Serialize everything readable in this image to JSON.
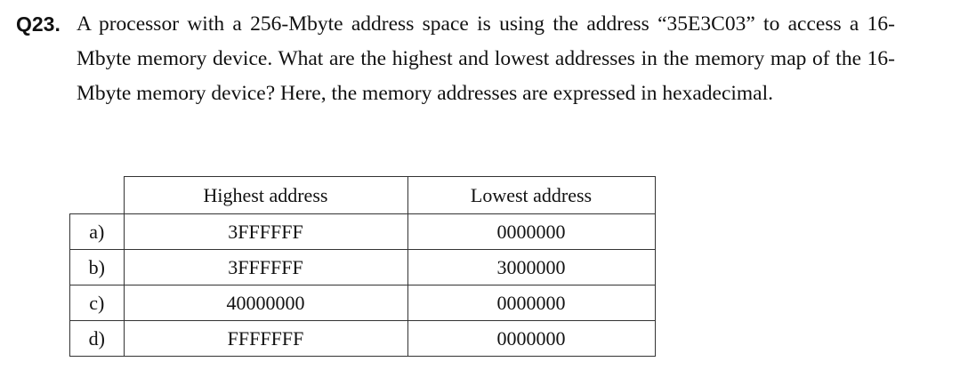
{
  "question": {
    "number": "Q23.",
    "text": "A processor with a 256-Mbyte address space is using the address “35E3C03” to access a 16-Mbyte memory device. What are the highest and lowest addresses in the memory map of the 16-Mbyte memory device?   Here, the memory addresses are expressed in hexadecimal."
  },
  "table": {
    "headers": [
      "Highest address",
      "Lowest address"
    ],
    "rows": [
      {
        "label": "a)",
        "highest": "3FFFFFF",
        "lowest": "0000000"
      },
      {
        "label": "b)",
        "highest": "3FFFFFF",
        "lowest": "3000000"
      },
      {
        "label": "c)",
        "highest": "40000000",
        "lowest": "0000000"
      },
      {
        "label": "d)",
        "highest": "FFFFFFF",
        "lowest": "0000000"
      }
    ]
  }
}
